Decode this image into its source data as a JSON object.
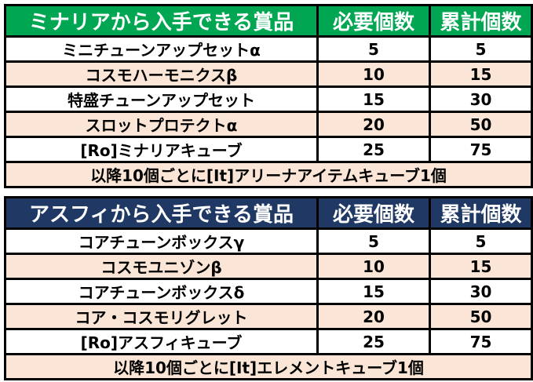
{
  "colors": {
    "table1_header_bg": "#00A651",
    "table2_header_bg": "#1F3864",
    "alt_row_bg": "#FBE5D6",
    "border": "#000000",
    "header_text": "#FFFFFF",
    "body_text": "#000000",
    "page_bg": "#FFFFFF"
  },
  "tables": [
    {
      "title": "ミナリアから入手できる賞品",
      "col_required": "必要個数",
      "col_cumulative": "累計個数",
      "rows": [
        {
          "item": "ミニチューンアップセットα",
          "required": "5",
          "cumulative": "5"
        },
        {
          "item": "コスモハーモニクスβ",
          "required": "10",
          "cumulative": "15"
        },
        {
          "item": "特盛チューンアップセット",
          "required": "15",
          "cumulative": "30"
        },
        {
          "item": "スロットプロテクトα",
          "required": "20",
          "cumulative": "50"
        },
        {
          "item": "[Ro]ミナリアキューブ",
          "required": "25",
          "cumulative": "75"
        }
      ],
      "footer": "以降10個ごとに[It]アリーナアイテムキューブ1個"
    },
    {
      "title": "アスフィから入手できる賞品",
      "col_required": "必要個数",
      "col_cumulative": "累計個数",
      "rows": [
        {
          "item": "コアチューンボックスγ",
          "required": "5",
          "cumulative": "5"
        },
        {
          "item": "コスモユニゾンβ",
          "required": "10",
          "cumulative": "15"
        },
        {
          "item": "コアチューンボックスδ",
          "required": "15",
          "cumulative": "30"
        },
        {
          "item": "コア・コスモリグレット",
          "required": "20",
          "cumulative": "50"
        },
        {
          "item": "[Ro]アスフィキューブ",
          "required": "25",
          "cumulative": "75"
        }
      ],
      "footer": "以降10個ごとに[It]エレメントキューブ1個"
    }
  ]
}
